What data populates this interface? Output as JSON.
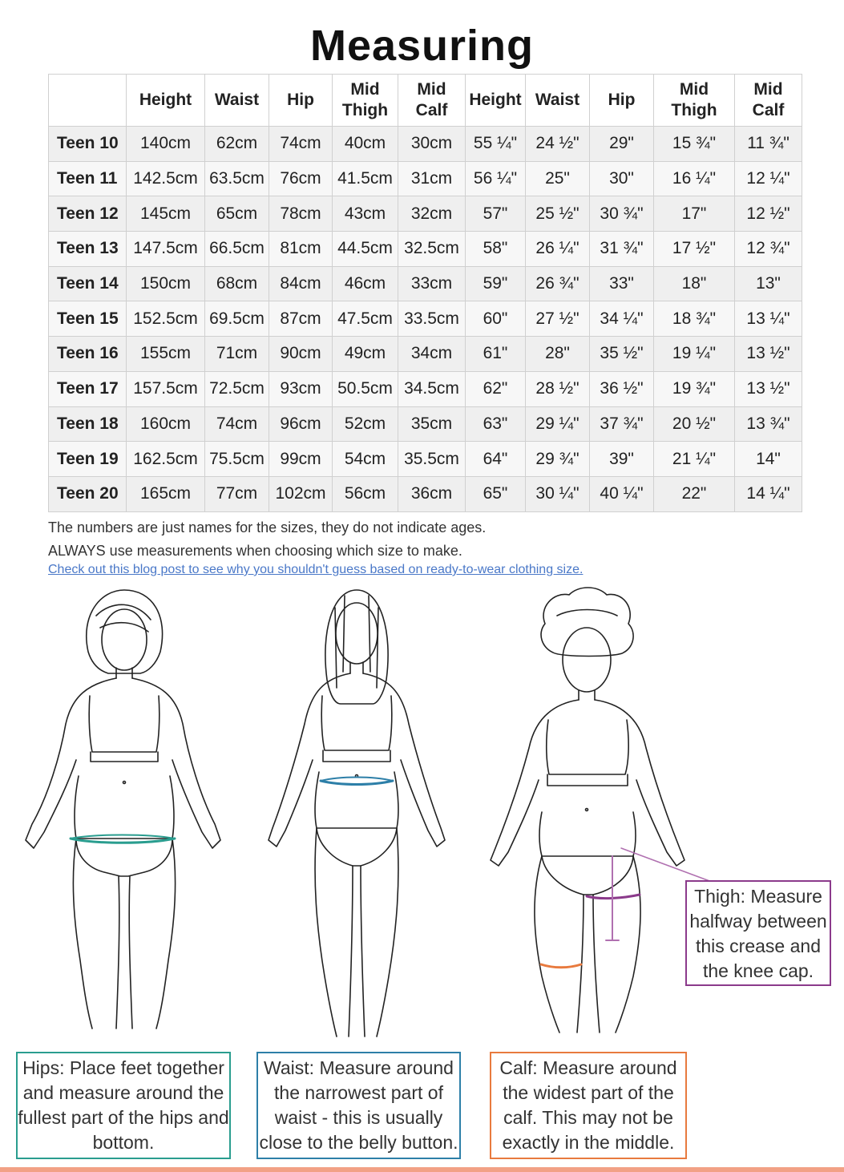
{
  "title": "Measuring",
  "table": {
    "headers": [
      "",
      "Height",
      "Waist",
      "Hip",
      "Mid Thigh",
      "Mid Calf",
      "Height",
      "Waist",
      "Hip",
      "Mid Thigh",
      "Mid Calf"
    ],
    "rows": [
      [
        "Teen 10",
        "140cm",
        "62cm",
        "74cm",
        "40cm",
        "30cm",
        "55 ¼\"",
        "24 ½\"",
        "29\"",
        "15 ¾\"",
        "11 ¾\""
      ],
      [
        "Teen 11",
        "142.5cm",
        "63.5cm",
        "76cm",
        "41.5cm",
        "31cm",
        "56 ¼\"",
        "25\"",
        "30\"",
        "16 ¼\"",
        "12 ¼\""
      ],
      [
        "Teen 12",
        "145cm",
        "65cm",
        "78cm",
        "43cm",
        "32cm",
        "57\"",
        "25 ½\"",
        "30 ¾\"",
        "17\"",
        "12 ½\""
      ],
      [
        "Teen 13",
        "147.5cm",
        "66.5cm",
        "81cm",
        "44.5cm",
        "32.5cm",
        "58\"",
        "26 ¼\"",
        "31 ¾\"",
        "17 ½\"",
        "12 ¾\""
      ],
      [
        "Teen 14",
        "150cm",
        "68cm",
        "84cm",
        "46cm",
        "33cm",
        "59\"",
        "26 ¾\"",
        "33\"",
        "18\"",
        "13\""
      ],
      [
        "Teen 15",
        "152.5cm",
        "69.5cm",
        "87cm",
        "47.5cm",
        "33.5cm",
        "60\"",
        "27 ½\"",
        "34 ¼\"",
        "18 ¾\"",
        "13 ¼\""
      ],
      [
        "Teen 16",
        "155cm",
        "71cm",
        "90cm",
        "49cm",
        "34cm",
        "61\"",
        "28\"",
        "35 ½\"",
        "19 ¼\"",
        "13 ½\""
      ],
      [
        "Teen 17",
        "157.5cm",
        "72.5cm",
        "93cm",
        "50.5cm",
        "34.5cm",
        "62\"",
        "28 ½\"",
        "36 ½\"",
        "19 ¾\"",
        "13 ½\""
      ],
      [
        "Teen 18",
        "160cm",
        "74cm",
        "96cm",
        "52cm",
        "35cm",
        "63\"",
        "29 ¼\"",
        "37 ¾\"",
        "20 ½\"",
        "13 ¾\""
      ],
      [
        "Teen 19",
        "162.5cm",
        "75.5cm",
        "99cm",
        "54cm",
        "35.5cm",
        "64\"",
        "29 ¾\"",
        "39\"",
        "21 ¼\"",
        "14\""
      ],
      [
        "Teen 20",
        "165cm",
        "77cm",
        "102cm",
        "56cm",
        "36cm",
        "65\"",
        "30 ¼\"",
        "40 ¼\"",
        "22\"",
        "14 ¼\""
      ]
    ]
  },
  "notes": {
    "line1": "The numbers are just names for the sizes, they do not indicate ages.",
    "line2": "ALWAYS use measurements when choosing which size to make.",
    "link": "Check out this blog post to see why you shouldn't guess based on ready-to-wear clothing size."
  },
  "callouts": {
    "hips": [
      "Hips: Place feet together",
      "and measure around the",
      "fullest part of the hips and",
      "bottom."
    ],
    "waist": [
      "Waist: Measure around",
      "the narrowest part of",
      "waist - this is usually",
      "close to the belly button."
    ],
    "calf": [
      "Calf: Measure around",
      "the widest part of the",
      "calf. This may not be",
      "exactly in the middle."
    ],
    "thigh": [
      "Thigh: Measure",
      "halfway between",
      "this crease and",
      "the knee cap."
    ]
  },
  "colors": {
    "hips": "#2a9d8f",
    "waist": "#2d7fa8",
    "calf": "#e87a3e",
    "thigh": "#8b3a8b",
    "link": "#4a78c8",
    "bottom_bar": "#f2a185"
  },
  "icons": [
    "body-figure-short-hair-icon",
    "body-figure-long-hair-icon",
    "body-figure-curly-hair-icon"
  ]
}
